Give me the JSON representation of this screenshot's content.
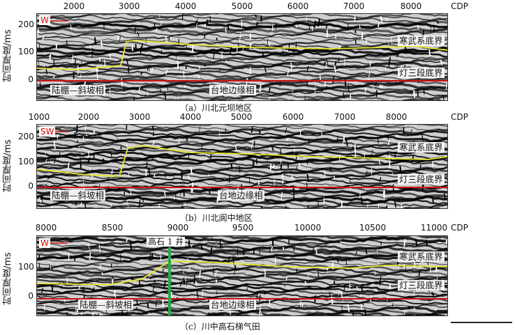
{
  "panels": [
    {
      "caption": "（a）川北元坝地区",
      "y_title": "时间厚度/ms",
      "y_ticks": [
        "200",
        "100",
        "0"
      ],
      "x_ticks": [
        "2000",
        "3000",
        "4000",
        "5000",
        "6000",
        "7000",
        "8000"
      ],
      "x_unit": "CDP",
      "direction": "W",
      "label_top": "寒武系底界",
      "label_bottom": "灯三段底界",
      "facies_left": "陆棚—斜坡相",
      "facies_right": "台地边缘相",
      "colors": {
        "horizon_top": "#e8e82a",
        "horizon_bottom": "#cc1111"
      }
    },
    {
      "caption": "（b）川北阆中地区",
      "y_title": "时间厚度/ms",
      "y_ticks": [
        "200",
        "100",
        "0"
      ],
      "x_ticks": [
        "1000",
        "2000",
        "3000",
        "4000",
        "5000",
        "6000",
        "7000",
        "8000"
      ],
      "x_unit": "CDP",
      "direction": "SW",
      "label_top": "寒武系底界",
      "label_bottom": "灯三段底界",
      "facies_left": "陆棚—斜坡相",
      "facies_right": "台地边缘相",
      "colors": {
        "horizon_top": "#e8e82a",
        "horizon_bottom": "#cc1111"
      }
    },
    {
      "caption": "（c）川中高石梯气田",
      "y_title": "时间厚度/ms",
      "y_ticks": [
        "100",
        "0"
      ],
      "x_ticks": [
        "8000",
        "8500",
        "9000",
        "9500",
        "10000",
        "10500",
        "11000"
      ],
      "x_unit": "CDP",
      "direction": "W",
      "well_label": "高石 1 井",
      "label_top": "寒武系底界",
      "label_bottom": "灯三段底界",
      "facies_left": "陆棚—斜坡相",
      "facies_right": "台地边缘相",
      "colors": {
        "horizon_top": "#e8e82a",
        "horizon_bottom": "#cc1111",
        "well": "#2aa84a"
      }
    }
  ]
}
